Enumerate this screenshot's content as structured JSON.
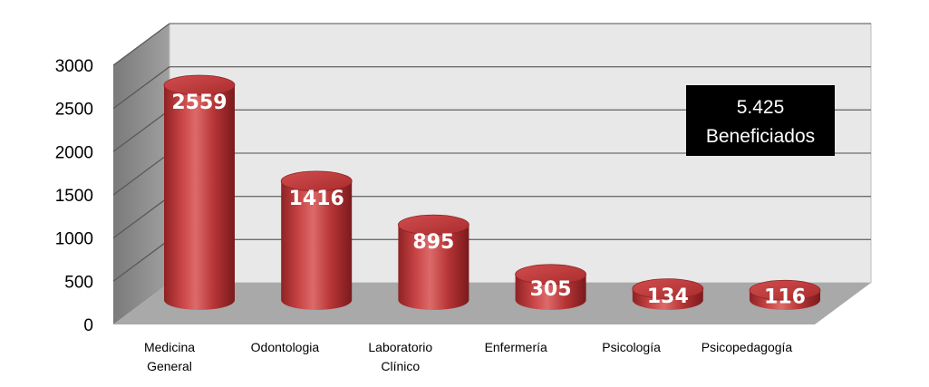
{
  "chart_data": {
    "type": "bar",
    "style": "3d-cylinder",
    "categories": [
      "Medicina General",
      "Odontologia",
      "Laboratorio Clínico",
      "Enfermería",
      "Psicología",
      "Psicopedagogía"
    ],
    "category_lines": [
      [
        "Medicina",
        "General"
      ],
      [
        "Odontologia"
      ],
      [
        "Laboratorio",
        "Clínico"
      ],
      [
        "Enfermería"
      ],
      [
        "Psicología"
      ],
      [
        "Psicopedagogía"
      ]
    ],
    "values": [
      2559,
      1416,
      895,
      305,
      134,
      116
    ],
    "data_labels": [
      "2559",
      "1416",
      "895",
      "305",
      "134",
      "116"
    ],
    "ylim": [
      0,
      3000
    ],
    "yticks": [
      0,
      500,
      1000,
      1500,
      2000,
      2500,
      3000
    ],
    "ytick_labels": [
      "0",
      "500",
      "1000",
      "1500",
      "2000",
      "2500",
      "3000"
    ],
    "grid": true,
    "legend": "none",
    "colors": {
      "bar": "#c0393b",
      "bar_dark": "#7e1a1c",
      "bar_light": "#e07a7a",
      "wall": "#e8e8e8",
      "side_wall": "#8a8a8a",
      "floor": "#a8a8a8",
      "grid": "#6b6b6b"
    },
    "annotation": {
      "lines": [
        "5.425",
        "Beneficiados"
      ],
      "background": "#000000",
      "text_color": "#ffffff"
    }
  }
}
